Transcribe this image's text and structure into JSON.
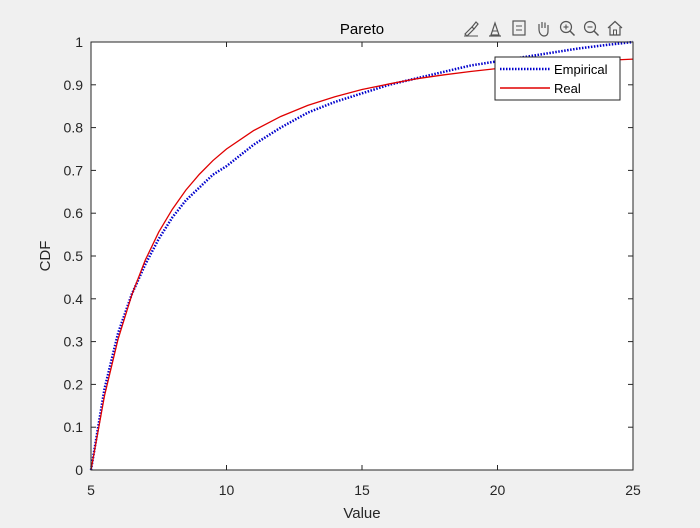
{
  "toolbar": {
    "buttons": [
      {
        "name": "brush-icon"
      },
      {
        "name": "data-tips-icon"
      },
      {
        "name": "save-export-icon"
      },
      {
        "name": "pan-hand-icon"
      },
      {
        "name": "zoom-in-icon"
      },
      {
        "name": "zoom-out-icon"
      },
      {
        "name": "home-restore-view-icon"
      }
    ]
  },
  "colors": {
    "figure_bg": "#f0f0f0",
    "axes_bg": "#ffffff",
    "empirical": "#0000cc",
    "real": "#e00000"
  },
  "chart_data": {
    "type": "line",
    "title": "Pareto",
    "xlabel": "Value",
    "ylabel": "CDF",
    "xlim": [
      5,
      25
    ],
    "ylim": [
      0,
      1
    ],
    "xticks": [
      5,
      10,
      15,
      20,
      25
    ],
    "yticks": [
      0,
      0.1,
      0.2,
      0.3,
      0.4,
      0.5,
      0.6,
      0.7,
      0.8,
      0.9,
      1
    ],
    "ytick_labels": [
      "0",
      "0.1",
      "0.2",
      "0.3",
      "0.4",
      "0.5",
      "0.6",
      "0.7",
      "0.8",
      "0.9",
      "1"
    ],
    "xtick_labels": [
      "5",
      "10",
      "15",
      "20",
      "25"
    ],
    "grid": false,
    "legend_position": "top-right",
    "series": [
      {
        "name": "Empirical",
        "style": "dotted",
        "color": "#0000cc",
        "x": [
          5,
          5.5,
          6,
          6.5,
          7,
          7.5,
          8,
          8.5,
          9,
          9.5,
          10,
          11,
          12,
          13,
          14,
          15,
          16,
          17,
          18,
          19,
          20,
          21,
          22,
          23,
          24,
          25
        ],
        "y": [
          0,
          0.19,
          0.32,
          0.41,
          0.48,
          0.54,
          0.59,
          0.63,
          0.66,
          0.69,
          0.71,
          0.76,
          0.8,
          0.835,
          0.86,
          0.88,
          0.9,
          0.915,
          0.93,
          0.945,
          0.955,
          0.965,
          0.975,
          0.985,
          0.993,
          1.0
        ]
      },
      {
        "name": "Real",
        "style": "solid",
        "color": "#e00000",
        "x": [
          5,
          5.5,
          6,
          6.5,
          7,
          7.5,
          8,
          8.5,
          9,
          9.5,
          10,
          11,
          12,
          13,
          14,
          15,
          16,
          17,
          18,
          19,
          20,
          21,
          22,
          23,
          24,
          25
        ],
        "y": [
          0,
          0.174,
          0.306,
          0.408,
          0.49,
          0.556,
          0.609,
          0.654,
          0.691,
          0.723,
          0.75,
          0.793,
          0.826,
          0.852,
          0.872,
          0.889,
          0.902,
          0.914,
          0.923,
          0.931,
          0.938,
          0.944,
          0.948,
          0.953,
          0.957,
          0.96
        ]
      }
    ]
  }
}
